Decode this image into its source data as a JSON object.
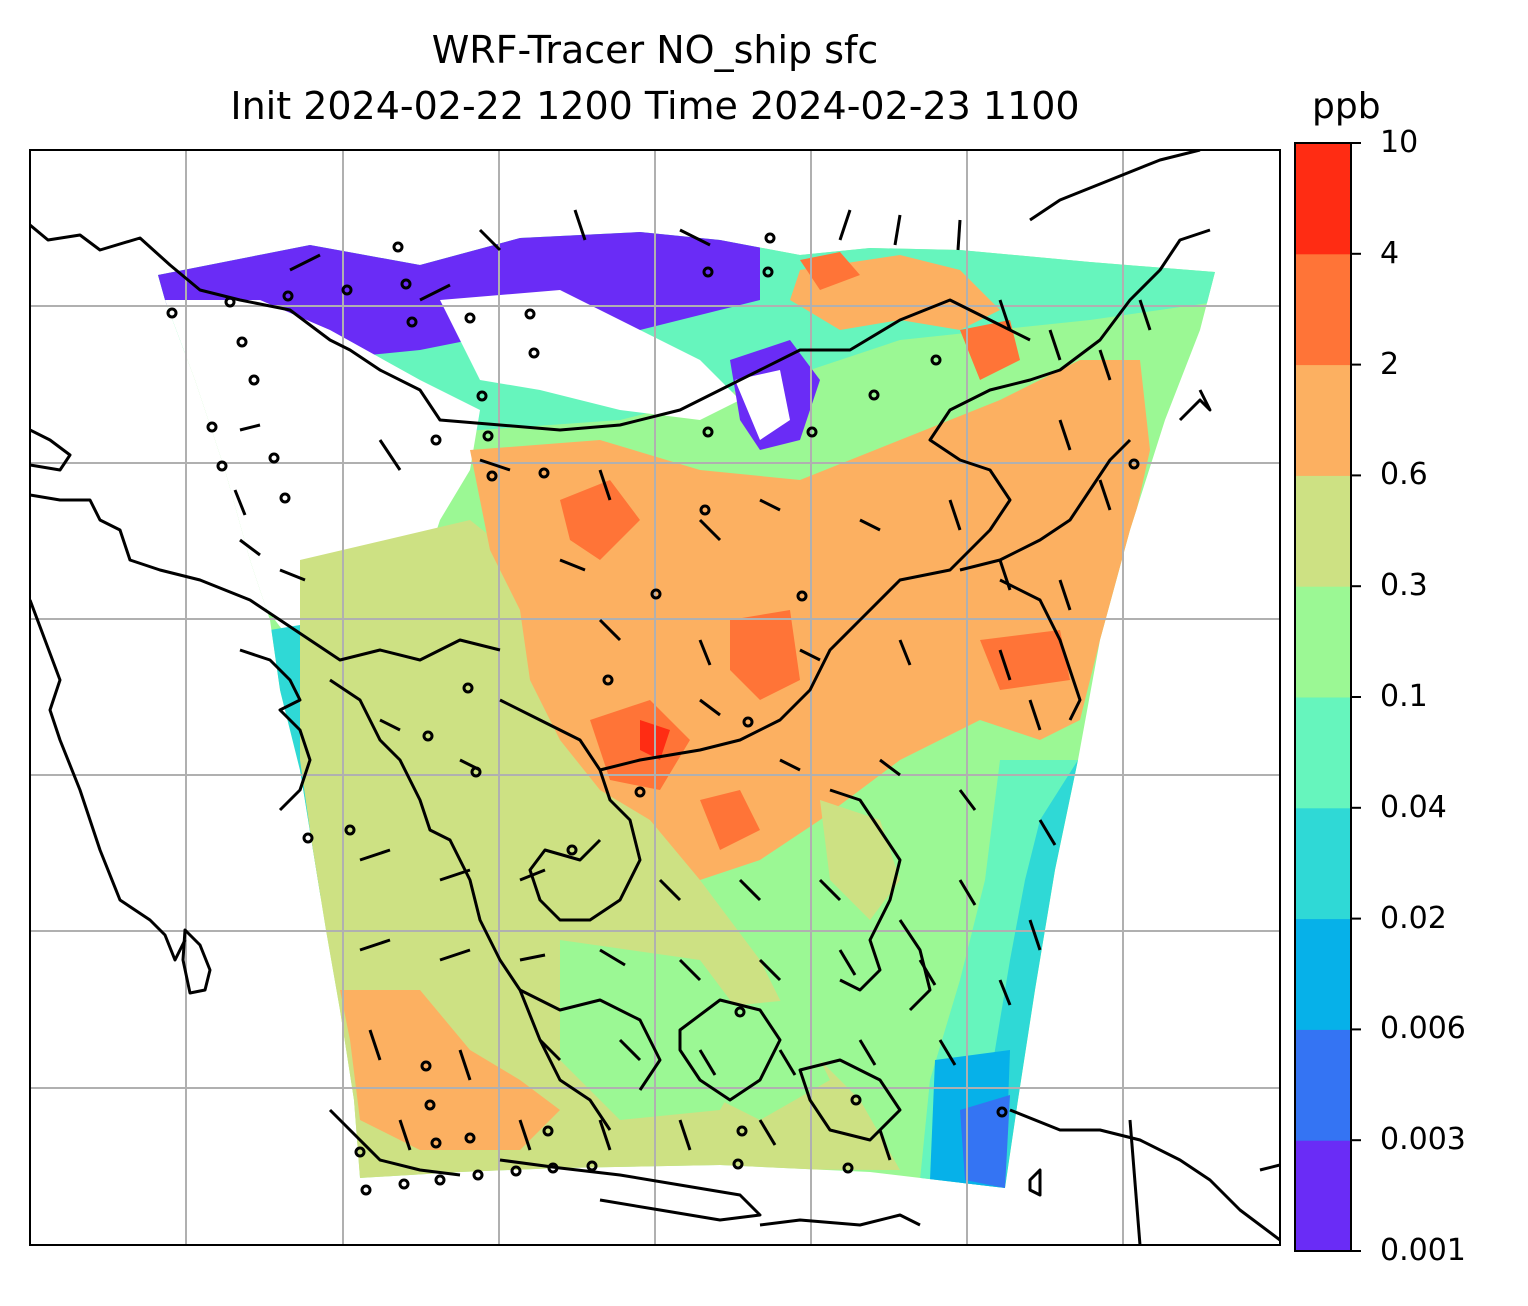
{
  "title_line1": "WRF-Tracer NO_ship sfc",
  "title_line2": "Init 2024-02-22 1200 Time 2024-02-23 1100",
  "colorbar": {
    "unit": "ppb",
    "ticks": [
      "0.001",
      "0.003",
      "0.006",
      "0.02",
      "0.04",
      "0.1",
      "0.3",
      "0.6",
      "2",
      "4",
      "10"
    ],
    "colors": [
      "#6a2cf6",
      "#3474f3",
      "#06b1e9",
      "#2fd9d6",
      "#66f5bd",
      "#9bf894",
      "#cde183",
      "#fcb061",
      "#ff7437",
      "#ff2c13"
    ]
  },
  "map": {
    "land_outline_color": "#000000",
    "gridline_color": "#b0b0b0",
    "no_data_color": "#ffffff"
  }
}
